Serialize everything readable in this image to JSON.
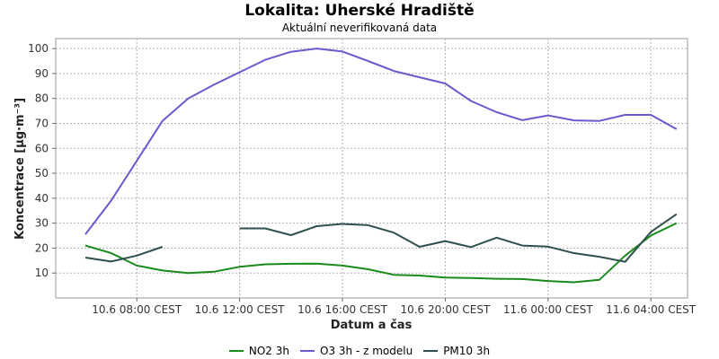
{
  "title": "Lokalita: Uherské Hradiště",
  "subtitle": "Aktuální neverifikovaná data",
  "chart_data": {
    "type": "line",
    "title": "Lokalita: Uherské Hradiště",
    "subtitle": "Aktuální neverifikovaná data",
    "xlabel": "Datum a čas",
    "ylabel": "Koncentrace [µg·m⁻³]",
    "x": [
      "10.6 06:00",
      "10.6 07:00",
      "10.6 08:00",
      "10.6 09:00",
      "10.6 10:00",
      "10.6 11:00",
      "10.6 12:00",
      "10.6 13:00",
      "10.6 14:00",
      "10.6 15:00",
      "10.6 16:00",
      "10.6 17:00",
      "10.6 18:00",
      "10.6 19:00",
      "10.6 20:00",
      "10.6 21:00",
      "10.6 22:00",
      "10.6 23:00",
      "11.6 00:00",
      "11.6 01:00",
      "11.6 02:00",
      "11.6 03:00",
      "11.6 04:00",
      "11.6 05:00"
    ],
    "xticks": [
      "10.6 08:00 CEST",
      "10.6 12:00 CEST",
      "10.6 16:00 CEST",
      "10.6 20:00 CEST",
      "11.6 00:00 CEST",
      "11.6 04:00 CEST"
    ],
    "ylim": [
      0,
      104
    ],
    "yticks": [
      10,
      20,
      30,
      40,
      50,
      60,
      70,
      80,
      90,
      100
    ],
    "grid": true,
    "legend_position": "bottom",
    "series": [
      {
        "name": "NO2 3h",
        "color": "#1a8a1a",
        "values": [
          21,
          18,
          13,
          11,
          10,
          10.5,
          12.5,
          13.5,
          13.7,
          13.8,
          13,
          11.5,
          9.3,
          9,
          8.2,
          8,
          7.7,
          7.6,
          6.8,
          6.3,
          7.3,
          17,
          25,
          30
        ]
      },
      {
        "name": "O3 3h - z modelu",
        "color": "#6a5acd",
        "values": [
          25.5,
          39,
          55,
          71,
          80,
          85.5,
          90.5,
          95.5,
          98.7,
          100,
          98.8,
          95,
          91,
          88.5,
          86,
          79,
          74.5,
          71.3,
          73.2,
          71.2,
          71,
          73.4,
          73.4,
          67.7
        ]
      },
      {
        "name": "PM10 3h",
        "color": "#2f4f4f",
        "values": [
          16.2,
          14.6,
          17,
          20.5,
          null,
          null,
          27.9,
          27.9,
          25.2,
          28.8,
          29.7,
          29.2,
          26.2,
          20.5,
          22.8,
          20.4,
          24.2,
          21,
          20.6,
          18,
          16.5,
          14.5,
          26.5,
          33.6
        ]
      }
    ]
  }
}
